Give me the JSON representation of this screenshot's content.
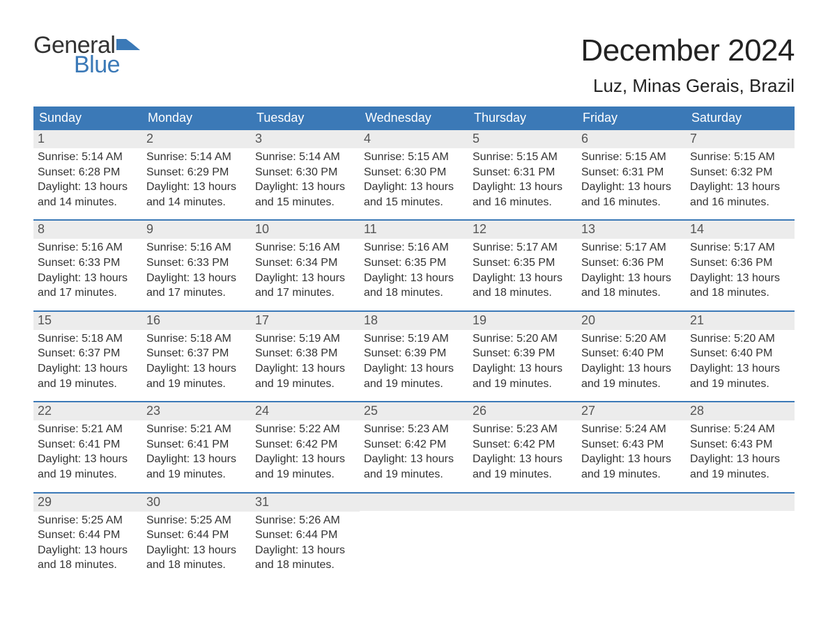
{
  "brand": {
    "word1": "General",
    "word2": "Blue",
    "word1_color": "#333333",
    "word2_color": "#3b79b7",
    "mark_color": "#3b79b7"
  },
  "title": "December 2024",
  "location": "Luz, Minas Gerais, Brazil",
  "colors": {
    "header_bg": "#3b79b7",
    "header_text": "#ffffff",
    "daynum_bg": "#ececec",
    "daynum_text": "#555555",
    "body_text": "#333333",
    "page_bg": "#ffffff",
    "row_border": "#3b79b7"
  },
  "fonts": {
    "title_size_pt": 33,
    "location_size_pt": 20,
    "dow_size_pt": 14,
    "daynum_size_pt": 14,
    "body_size_pt": 12
  },
  "days_of_week": [
    "Sunday",
    "Monday",
    "Tuesday",
    "Wednesday",
    "Thursday",
    "Friday",
    "Saturday"
  ],
  "weeks": [
    [
      {
        "n": "1",
        "sunrise": "Sunrise: 5:14 AM",
        "sunset": "Sunset: 6:28 PM",
        "d1": "Daylight: 13 hours",
        "d2": "and 14 minutes."
      },
      {
        "n": "2",
        "sunrise": "Sunrise: 5:14 AM",
        "sunset": "Sunset: 6:29 PM",
        "d1": "Daylight: 13 hours",
        "d2": "and 14 minutes."
      },
      {
        "n": "3",
        "sunrise": "Sunrise: 5:14 AM",
        "sunset": "Sunset: 6:30 PM",
        "d1": "Daylight: 13 hours",
        "d2": "and 15 minutes."
      },
      {
        "n": "4",
        "sunrise": "Sunrise: 5:15 AM",
        "sunset": "Sunset: 6:30 PM",
        "d1": "Daylight: 13 hours",
        "d2": "and 15 minutes."
      },
      {
        "n": "5",
        "sunrise": "Sunrise: 5:15 AM",
        "sunset": "Sunset: 6:31 PM",
        "d1": "Daylight: 13 hours",
        "d2": "and 16 minutes."
      },
      {
        "n": "6",
        "sunrise": "Sunrise: 5:15 AM",
        "sunset": "Sunset: 6:31 PM",
        "d1": "Daylight: 13 hours",
        "d2": "and 16 minutes."
      },
      {
        "n": "7",
        "sunrise": "Sunrise: 5:15 AM",
        "sunset": "Sunset: 6:32 PM",
        "d1": "Daylight: 13 hours",
        "d2": "and 16 minutes."
      }
    ],
    [
      {
        "n": "8",
        "sunrise": "Sunrise: 5:16 AM",
        "sunset": "Sunset: 6:33 PM",
        "d1": "Daylight: 13 hours",
        "d2": "and 17 minutes."
      },
      {
        "n": "9",
        "sunrise": "Sunrise: 5:16 AM",
        "sunset": "Sunset: 6:33 PM",
        "d1": "Daylight: 13 hours",
        "d2": "and 17 minutes."
      },
      {
        "n": "10",
        "sunrise": "Sunrise: 5:16 AM",
        "sunset": "Sunset: 6:34 PM",
        "d1": "Daylight: 13 hours",
        "d2": "and 17 minutes."
      },
      {
        "n": "11",
        "sunrise": "Sunrise: 5:16 AM",
        "sunset": "Sunset: 6:35 PM",
        "d1": "Daylight: 13 hours",
        "d2": "and 18 minutes."
      },
      {
        "n": "12",
        "sunrise": "Sunrise: 5:17 AM",
        "sunset": "Sunset: 6:35 PM",
        "d1": "Daylight: 13 hours",
        "d2": "and 18 minutes."
      },
      {
        "n": "13",
        "sunrise": "Sunrise: 5:17 AM",
        "sunset": "Sunset: 6:36 PM",
        "d1": "Daylight: 13 hours",
        "d2": "and 18 minutes."
      },
      {
        "n": "14",
        "sunrise": "Sunrise: 5:17 AM",
        "sunset": "Sunset: 6:36 PM",
        "d1": "Daylight: 13 hours",
        "d2": "and 18 minutes."
      }
    ],
    [
      {
        "n": "15",
        "sunrise": "Sunrise: 5:18 AM",
        "sunset": "Sunset: 6:37 PM",
        "d1": "Daylight: 13 hours",
        "d2": "and 19 minutes."
      },
      {
        "n": "16",
        "sunrise": "Sunrise: 5:18 AM",
        "sunset": "Sunset: 6:37 PM",
        "d1": "Daylight: 13 hours",
        "d2": "and 19 minutes."
      },
      {
        "n": "17",
        "sunrise": "Sunrise: 5:19 AM",
        "sunset": "Sunset: 6:38 PM",
        "d1": "Daylight: 13 hours",
        "d2": "and 19 minutes."
      },
      {
        "n": "18",
        "sunrise": "Sunrise: 5:19 AM",
        "sunset": "Sunset: 6:39 PM",
        "d1": "Daylight: 13 hours",
        "d2": "and 19 minutes."
      },
      {
        "n": "19",
        "sunrise": "Sunrise: 5:20 AM",
        "sunset": "Sunset: 6:39 PM",
        "d1": "Daylight: 13 hours",
        "d2": "and 19 minutes."
      },
      {
        "n": "20",
        "sunrise": "Sunrise: 5:20 AM",
        "sunset": "Sunset: 6:40 PM",
        "d1": "Daylight: 13 hours",
        "d2": "and 19 minutes."
      },
      {
        "n": "21",
        "sunrise": "Sunrise: 5:20 AM",
        "sunset": "Sunset: 6:40 PM",
        "d1": "Daylight: 13 hours",
        "d2": "and 19 minutes."
      }
    ],
    [
      {
        "n": "22",
        "sunrise": "Sunrise: 5:21 AM",
        "sunset": "Sunset: 6:41 PM",
        "d1": "Daylight: 13 hours",
        "d2": "and 19 minutes."
      },
      {
        "n": "23",
        "sunrise": "Sunrise: 5:21 AM",
        "sunset": "Sunset: 6:41 PM",
        "d1": "Daylight: 13 hours",
        "d2": "and 19 minutes."
      },
      {
        "n": "24",
        "sunrise": "Sunrise: 5:22 AM",
        "sunset": "Sunset: 6:42 PM",
        "d1": "Daylight: 13 hours",
        "d2": "and 19 minutes."
      },
      {
        "n": "25",
        "sunrise": "Sunrise: 5:23 AM",
        "sunset": "Sunset: 6:42 PM",
        "d1": "Daylight: 13 hours",
        "d2": "and 19 minutes."
      },
      {
        "n": "26",
        "sunrise": "Sunrise: 5:23 AM",
        "sunset": "Sunset: 6:42 PM",
        "d1": "Daylight: 13 hours",
        "d2": "and 19 minutes."
      },
      {
        "n": "27",
        "sunrise": "Sunrise: 5:24 AM",
        "sunset": "Sunset: 6:43 PM",
        "d1": "Daylight: 13 hours",
        "d2": "and 19 minutes."
      },
      {
        "n": "28",
        "sunrise": "Sunrise: 5:24 AM",
        "sunset": "Sunset: 6:43 PM",
        "d1": "Daylight: 13 hours",
        "d2": "and 19 minutes."
      }
    ],
    [
      {
        "n": "29",
        "sunrise": "Sunrise: 5:25 AM",
        "sunset": "Sunset: 6:44 PM",
        "d1": "Daylight: 13 hours",
        "d2": "and 18 minutes."
      },
      {
        "n": "30",
        "sunrise": "Sunrise: 5:25 AM",
        "sunset": "Sunset: 6:44 PM",
        "d1": "Daylight: 13 hours",
        "d2": "and 18 minutes."
      },
      {
        "n": "31",
        "sunrise": "Sunrise: 5:26 AM",
        "sunset": "Sunset: 6:44 PM",
        "d1": "Daylight: 13 hours",
        "d2": "and 18 minutes."
      },
      {
        "empty": true
      },
      {
        "empty": true
      },
      {
        "empty": true
      },
      {
        "empty": true
      }
    ]
  ]
}
